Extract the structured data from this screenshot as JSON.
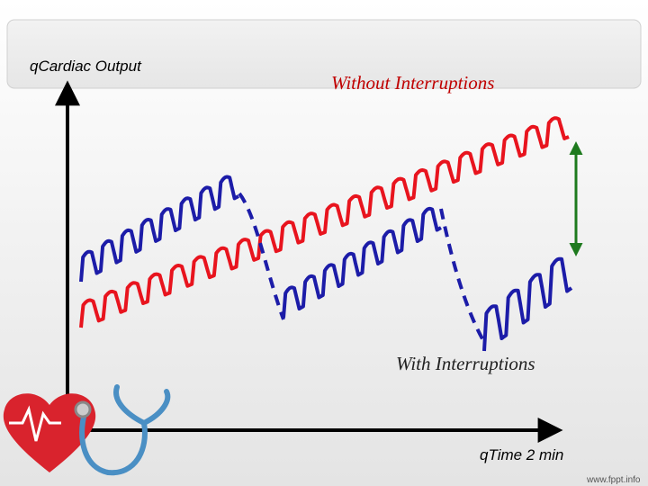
{
  "header": {
    "title": "qCardiac Output"
  },
  "labels": {
    "without": "Without    Interruptions",
    "with": "With    Interruptions",
    "x_axis": "qTime   2 min"
  },
  "footer": {
    "site": "www.fppt.info"
  }
}
